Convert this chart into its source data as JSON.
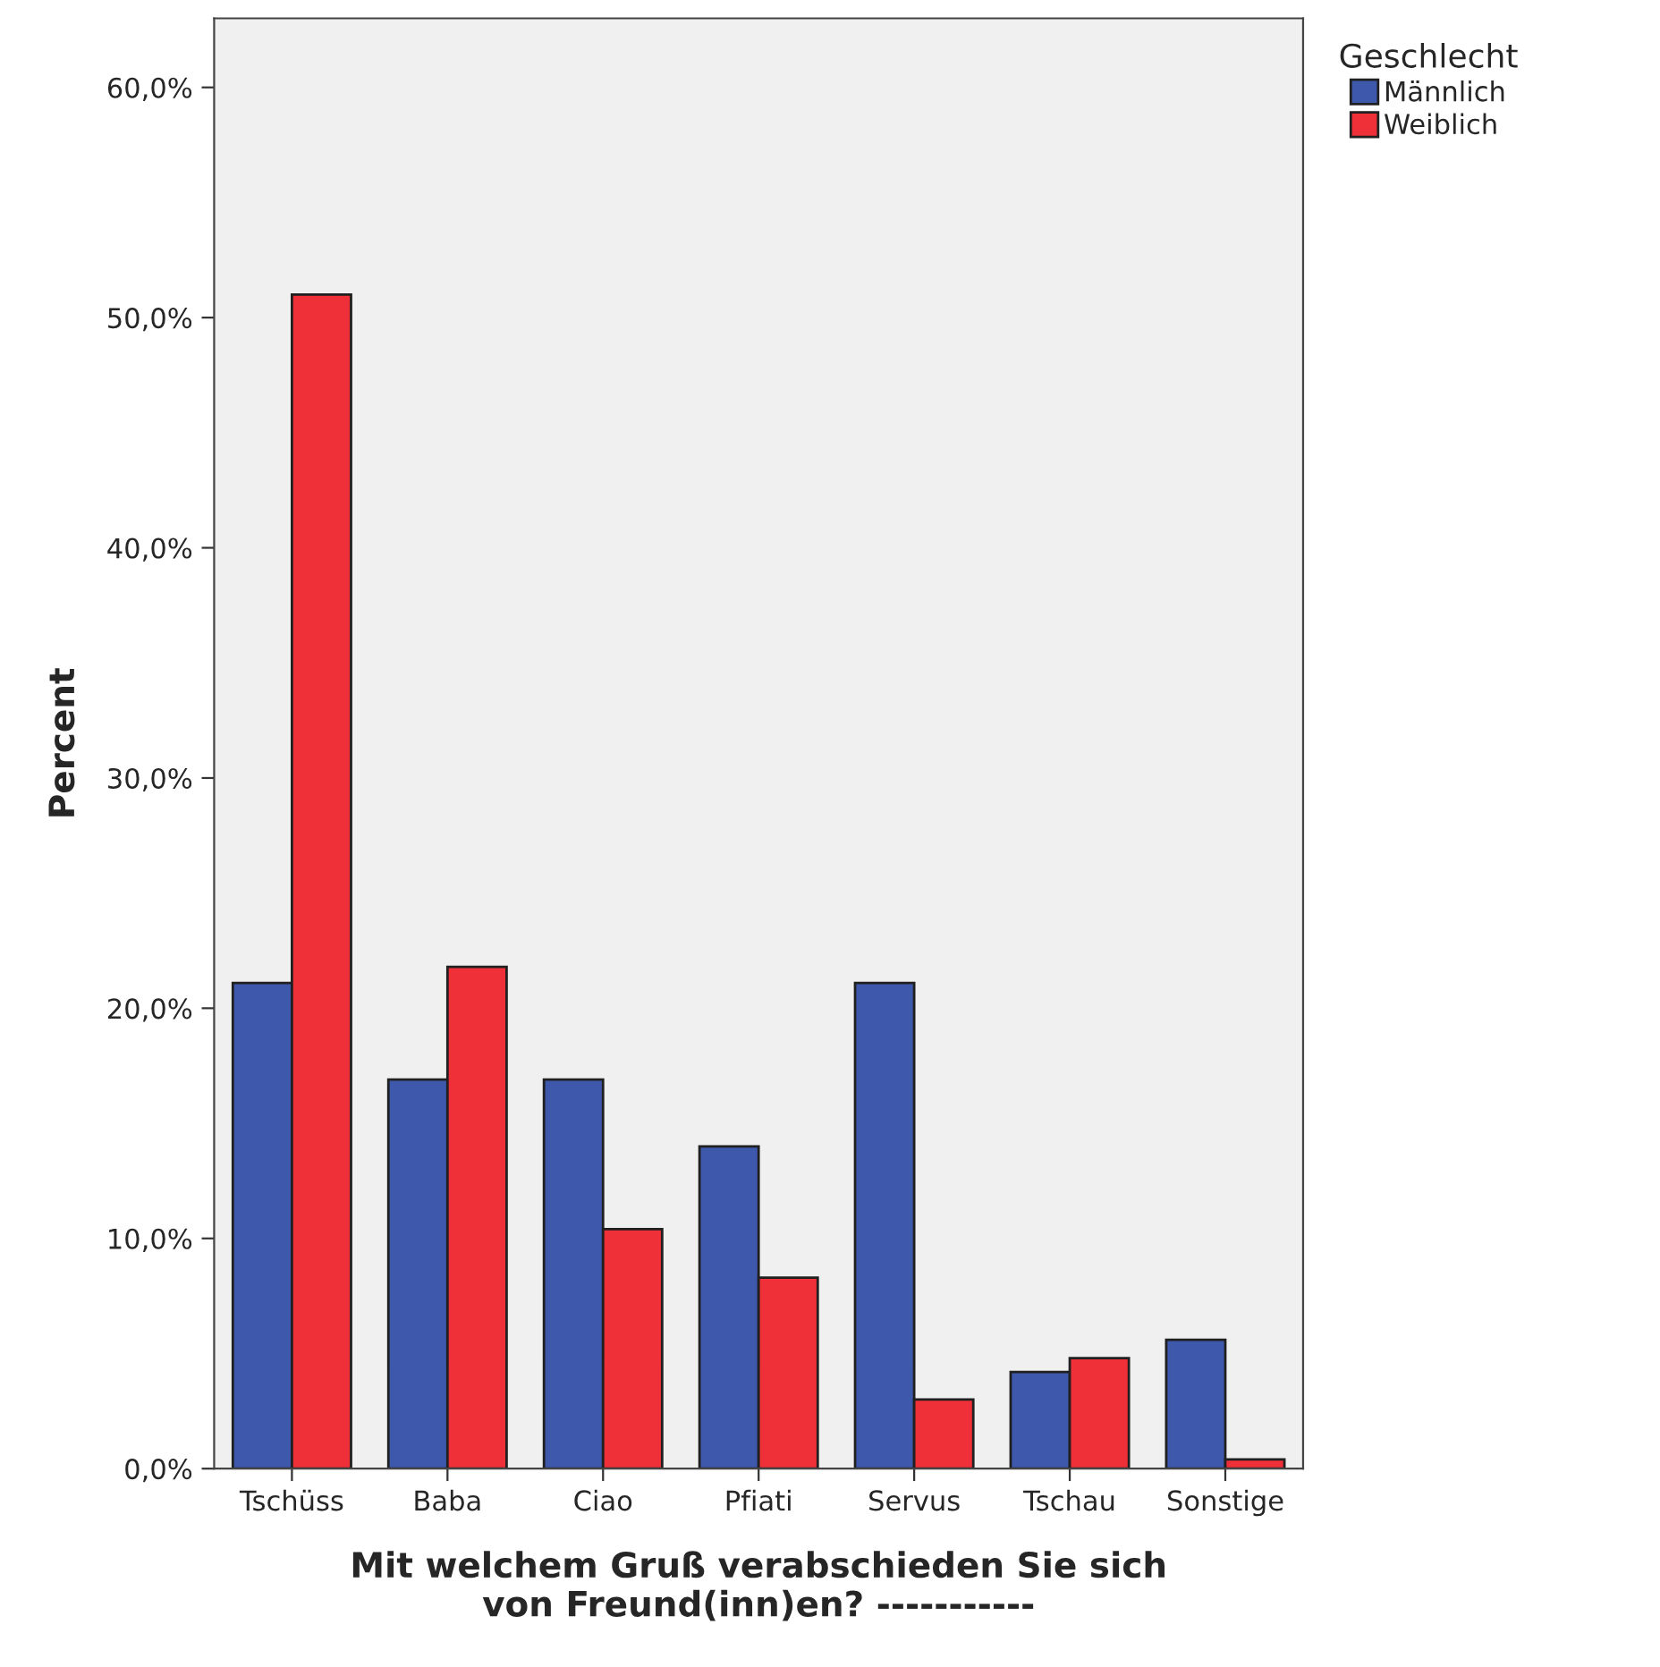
{
  "chart_data": {
    "type": "bar",
    "xlabel": "Mit welchem Gruß verabschieden Sie sich\nvon Freund(inn)en? -----------",
    "ylabel": "Percent",
    "legend_title": "Geschlecht",
    "categories": [
      "Tschüss",
      "Baba",
      "Ciao",
      "Pfiati",
      "Servus",
      "Tschau",
      "Sonstige"
    ],
    "series": [
      {
        "name": "Männlich",
        "color": "#3e58ac",
        "values": [
          21.1,
          16.9,
          16.9,
          14.0,
          21.1,
          4.2,
          5.6
        ]
      },
      {
        "name": "Weiblich",
        "color": "#ef3038",
        "values": [
          51.0,
          21.8,
          10.4,
          8.3,
          3.0,
          4.8,
          0.4
        ]
      }
    ],
    "ylim": [
      0,
      63
    ],
    "yticks": [
      {
        "value": 0,
        "label": "0,0%"
      },
      {
        "value": 10,
        "label": "10,0%"
      },
      {
        "value": 20,
        "label": "20,0%"
      },
      {
        "value": 30,
        "label": "30,0%"
      },
      {
        "value": 40,
        "label": "40,0%"
      },
      {
        "value": 50,
        "label": "50,0%"
      },
      {
        "value": 60,
        "label": "60,0%"
      }
    ],
    "grid": false,
    "legend": "top right"
  }
}
